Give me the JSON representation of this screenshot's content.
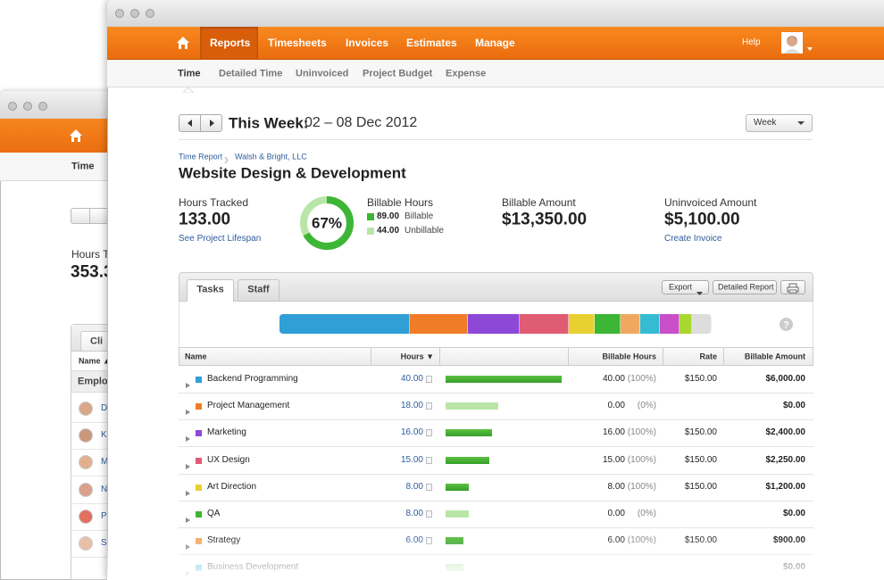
{
  "back_window": {
    "subnav_tab": "Time",
    "stat_label": "Hours Tr",
    "stat_value": "353.3",
    "tab": "Cli",
    "column": "Name ▲",
    "group": "Employ",
    "rows": [
      "D",
      "K",
      "M",
      "N",
      "P",
      "S"
    ]
  },
  "nav": {
    "items": [
      "Reports",
      "Timesheets",
      "Invoices",
      "Estimates",
      "Manage"
    ],
    "help": "Help"
  },
  "subnav": [
    "Time",
    "Detailed Time",
    "Uninvoiced",
    "Project Budget",
    "Expense"
  ],
  "period": {
    "label": "This Week:",
    "range": "02 – 08 Dec 2012",
    "select": "Week"
  },
  "breadcrumb": [
    "Time Report",
    "Walsh & Bright, LLC"
  ],
  "title": "Website Design & Development",
  "stats": {
    "hours_label": "Hours Tracked",
    "hours_value": "133.00",
    "hours_link": "See Project Lifespan",
    "donut": {
      "value": 67,
      "label": "67%"
    },
    "billable_label": "Billable Hours",
    "billable_value": "89.00",
    "billable_text": "Billable",
    "unbillable_value": "44.00",
    "unbillable_text": "Unbillable",
    "amount_label": "Billable Amount",
    "amount_value": "$13,350.00",
    "uninvoiced_label": "Uninvoiced Amount",
    "uninvoiced_value": "$5,100.00",
    "uninvoiced_link": "Create Invoice"
  },
  "tabs": [
    "Tasks",
    "Staff"
  ],
  "buttons": {
    "export": "Export",
    "report": "Detailed Report"
  },
  "table": {
    "columns": [
      "Name",
      "Hours ▼",
      "Billable Hours",
      "Rate",
      "Billable Amount"
    ],
    "tasks": [
      {
        "name": "Backend Programming",
        "color": "#2f9fd6",
        "hours": 40,
        "hours_label": "40.00",
        "billable_hours": "40.00",
        "percent": "(100%)",
        "rate": "$150.00",
        "amount": "$6,000.00",
        "billable": true
      },
      {
        "name": "Project Management",
        "color": "#f07c28",
        "hours": 18,
        "hours_label": "18.00",
        "billable_hours": "0.00",
        "percent": "(0%)",
        "rate": null,
        "amount": "$0.00",
        "billable": false
      },
      {
        "name": "Marketing",
        "color": "#8e48d8",
        "hours": 16,
        "hours_label": "16.00",
        "billable_hours": "16.00",
        "percent": "(100%)",
        "rate": "$150.00",
        "amount": "$2,400.00",
        "billable": true
      },
      {
        "name": "UX Design",
        "color": "#e05c73",
        "hours": 15,
        "hours_label": "15.00",
        "billable_hours": "15.00",
        "percent": "(100%)",
        "rate": "$150.00",
        "amount": "$2,250.00",
        "billable": true
      },
      {
        "name": "Art Direction",
        "color": "#e8d030",
        "hours": 8,
        "hours_label": "8.00",
        "billable_hours": "8.00",
        "percent": "(100%)",
        "rate": "$150.00",
        "amount": "$1,200.00",
        "billable": true
      },
      {
        "name": "QA",
        "color": "#3db535",
        "hours": 8,
        "hours_label": "8.00",
        "billable_hours": "0.00",
        "percent": "(0%)",
        "rate": null,
        "amount": "$0.00",
        "billable": false
      },
      {
        "name": "Strategy",
        "color": "#f0a860",
        "hours": 6,
        "hours_label": "6.00",
        "billable_hours": "6.00",
        "percent": "(100%)",
        "rate": "$150.00",
        "amount": "$900.00",
        "billable": true
      },
      {
        "name": "Business Development",
        "color": "#35bcd2",
        "hours": 6,
        "hours_label": null,
        "billable_hours": null,
        "percent": null,
        "rate": null,
        "amount": "$0.00",
        "billable": false
      }
    ]
  },
  "extra_segments": [
    {
      "color": "#c94fc9",
      "hours": 6
    },
    {
      "color": "#a8d830",
      "hours": 4
    },
    {
      "color": "#dddddd",
      "hours": 6
    }
  ]
}
